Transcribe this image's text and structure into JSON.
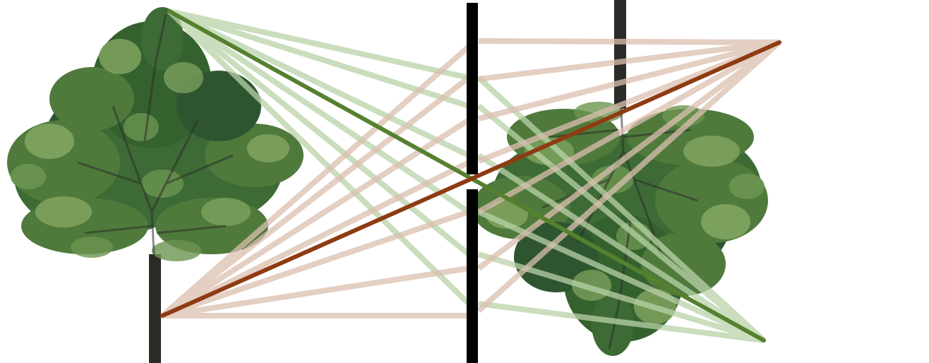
{
  "colors": {
    "background": "#ffffff",
    "green_ray": "#55812f",
    "brown_ray": "#8e3b12",
    "faint_green": "#b9d2a8",
    "faint_brown": "#dbbfb0",
    "barrier": "#000000",
    "foliage_dark": "#2e5530",
    "foliage_mid": "#4f7a3c",
    "foliage_light": "#84a862",
    "bark": "#2d2b28"
  },
  "objects": {
    "object": "upright-tree-icon",
    "image": "inverted-tree-icon",
    "barrier": "pinhole-barrier",
    "aperture": "pinhole-aperture"
  }
}
